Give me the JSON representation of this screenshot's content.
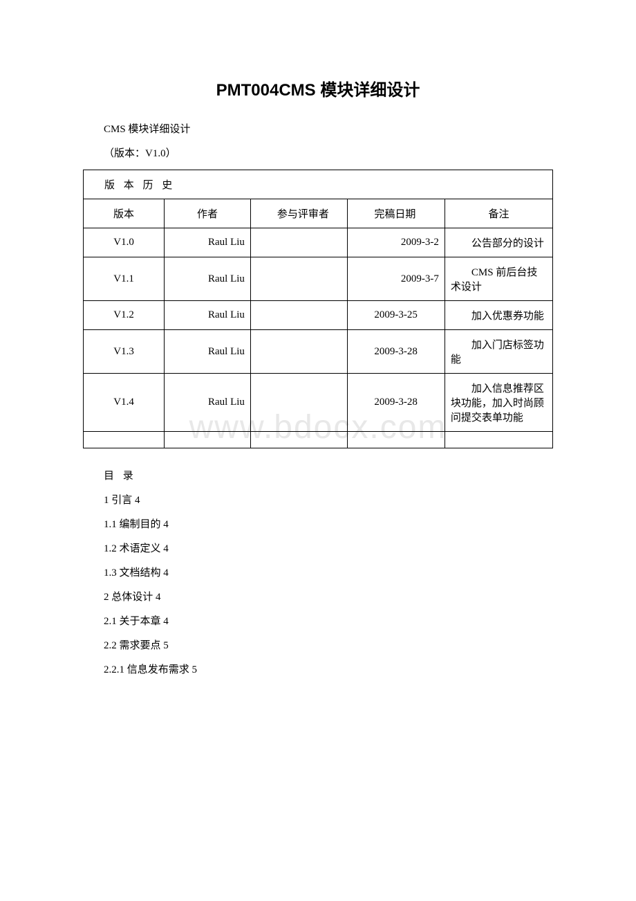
{
  "title": "PMT004CMS 模块详细设计",
  "subtitle": "CMS 模块详细设计",
  "versionLine": "（版本：V1.0）",
  "historyLabel": "版 本 历 史",
  "columns": {
    "version": "版本",
    "author": "作者",
    "reviewer": "参与评审者",
    "date": "完稿日期",
    "notes": "备注"
  },
  "rows": [
    {
      "version": "V1.0",
      "author": "Raul Liu",
      "reviewer": "",
      "date": "2009-3-2",
      "notes": "公告部分的设计"
    },
    {
      "version": "V1.1",
      "author": "Raul Liu",
      "reviewer": "",
      "date": "2009-3-7",
      "notes": "CMS 前后台技术设计"
    },
    {
      "version": "V1.2",
      "author": "Raul Liu",
      "reviewer": "",
      "date": "2009-3-25",
      "notes": "加入优惠券功能"
    },
    {
      "version": "V1.3",
      "author": "Raul Liu",
      "reviewer": "",
      "date": "2009-3-28",
      "notes": "加入门店标签功能"
    },
    {
      "version": "V1.4",
      "author": "Raul Liu",
      "reviewer": "",
      "date": "2009-3-28",
      "notes": "加入信息推荐区块功能，加入时尚顾问提交表单功能"
    }
  ],
  "tocHeading": "目 录",
  "toc": [
    "1 引言 4",
    "1.1 编制目的 4",
    "1.2 术语定义 4",
    "1.3 文档结构 4",
    "2 总体设计 4",
    "2.1 关于本章 4",
    "2.2 需求要点 5",
    "2.2.1 信息发布需求 5"
  ],
  "watermark": "www.bdocx.com",
  "colors": {
    "text": "#000000",
    "border": "#000000",
    "background": "#ffffff",
    "watermark": "#e8e8e8"
  }
}
